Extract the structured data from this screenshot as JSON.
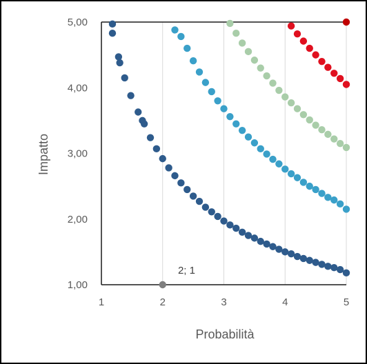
{
  "chart_data": {
    "type": "scatter",
    "xlabel": "Probabilità",
    "ylabel": "Impatto",
    "xlim": [
      1,
      5
    ],
    "ylim": [
      1,
      5
    ],
    "x_ticks": [
      {
        "value": 1,
        "label": "1"
      },
      {
        "value": 2,
        "label": "2"
      },
      {
        "value": 3,
        "label": "3"
      },
      {
        "value": 4,
        "label": "4"
      },
      {
        "value": 5,
        "label": "5"
      }
    ],
    "y_ticks": [
      {
        "value": 1,
        "label": "1,00"
      },
      {
        "value": 2,
        "label": "2,00"
      },
      {
        "value": 3,
        "label": "3,00"
      },
      {
        "value": 4,
        "label": "4,00"
      },
      {
        "value": 5,
        "label": "5,00"
      }
    ],
    "grid": {
      "vertical": true,
      "horizontal": false
    },
    "series": [
      {
        "color": "#2e5b8c",
        "x": [
          1.18,
          1.18,
          1.28,
          1.3,
          1.38,
          1.48,
          1.6,
          1.67,
          1.7,
          1.8,
          1.9,
          2.0,
          2.1,
          2.2,
          2.3,
          2.4,
          2.5,
          2.6,
          2.7,
          2.8,
          2.9,
          3.0,
          3.1,
          3.2,
          3.3,
          3.4,
          3.5,
          3.6,
          3.7,
          3.8,
          3.9,
          4.0,
          4.1,
          4.2,
          4.3,
          4.4,
          4.5,
          4.6,
          4.7,
          4.8,
          4.9,
          5.0
        ],
        "y": [
          4.97,
          4.83,
          4.47,
          4.38,
          4.15,
          3.88,
          3.63,
          3.5,
          3.45,
          3.24,
          3.07,
          2.92,
          2.78,
          2.66,
          2.55,
          2.45,
          2.35,
          2.27,
          2.18,
          2.11,
          2.04,
          1.97,
          1.91,
          1.86,
          1.8,
          1.75,
          1.71,
          1.66,
          1.62,
          1.58,
          1.54,
          1.5,
          1.47,
          1.43,
          1.4,
          1.37,
          1.34,
          1.31,
          1.28,
          1.26,
          1.23,
          1.18
        ]
      },
      {
        "color": "#3aa0c9",
        "x": [
          2.2,
          2.3,
          2.4,
          2.5,
          2.6,
          2.7,
          2.8,
          2.9,
          3.0,
          3.1,
          3.2,
          3.3,
          3.4,
          3.5,
          3.6,
          3.7,
          3.8,
          3.9,
          4.0,
          4.1,
          4.2,
          4.3,
          4.4,
          4.5,
          4.6,
          4.7,
          4.8,
          4.9,
          5.0
        ],
        "y": [
          4.88,
          4.78,
          4.6,
          4.41,
          4.24,
          4.08,
          3.94,
          3.8,
          3.68,
          3.56,
          3.45,
          3.35,
          3.25,
          3.16,
          3.07,
          2.99,
          2.91,
          2.84,
          2.76,
          2.69,
          2.63,
          2.56,
          2.5,
          2.45,
          2.39,
          2.33,
          2.29,
          2.23,
          2.15
        ]
      },
      {
        "color": "#a9cda9",
        "x": [
          3.1,
          3.2,
          3.3,
          3.4,
          3.5,
          3.6,
          3.7,
          3.8,
          3.9,
          4.0,
          4.1,
          4.2,
          4.3,
          4.4,
          4.5,
          4.6,
          4.7,
          4.8,
          4.9,
          5.0
        ],
        "y": [
          4.98,
          4.83,
          4.68,
          4.55,
          4.42,
          4.3,
          4.18,
          4.07,
          3.96,
          3.86,
          3.77,
          3.68,
          3.59,
          3.51,
          3.43,
          3.36,
          3.29,
          3.22,
          3.15,
          3.09
        ]
      },
      {
        "color": "#e0101f",
        "x": [
          4.1,
          4.2,
          4.3,
          4.4,
          4.5,
          4.6,
          4.7,
          4.8,
          4.9,
          5.0
        ],
        "y": [
          4.94,
          4.82,
          4.71,
          4.6,
          4.5,
          4.4,
          4.31,
          4.22,
          4.14,
          4.05
        ]
      },
      {
        "color": "#c00000",
        "x": [
          5.0
        ],
        "y": [
          5.0
        ]
      },
      {
        "color": "#7f7f7f",
        "x": [
          2.0
        ],
        "y": [
          1.0
        ]
      }
    ],
    "annotations": [
      {
        "text": "2; 1",
        "x": 2.25,
        "y": 1.22
      }
    ]
  }
}
